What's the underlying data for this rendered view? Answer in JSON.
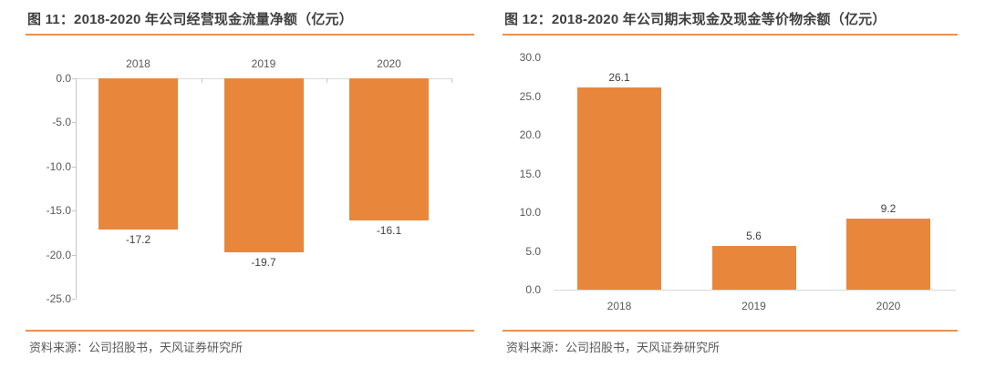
{
  "colors": {
    "bar": "#e8873c",
    "rule": "#e9914e",
    "axis_line": "#c6c6c6",
    "base_line": "#d9d9d9",
    "title_text": "#3f3f3f",
    "tick_text": "#595959",
    "data_label_text": "#3f3f3f",
    "source_text": "#595959"
  },
  "figures": [
    {
      "source": "资料来源：公司招股书，天风证券研究所"
    },
    {
      "source": "资料来源：公司招股书，天风证券研究所"
    }
  ],
  "chart_data": [
    {
      "type": "bar",
      "title": "图 11：2018-2020 年公司经营现金流量净额（亿元）",
      "categories": [
        "2018",
        "2019",
        "2020"
      ],
      "values": [
        -17.2,
        -19.7,
        -16.1
      ],
      "data_labels": [
        "-17.2",
        "-19.7",
        "-16.1"
      ],
      "xlabel": "",
      "ylabel": "",
      "ylim": [
        -25,
        0
      ],
      "yticks": [
        0,
        -5,
        -10,
        -15,
        -20,
        -25
      ],
      "ytick_labels": [
        "0.0",
        "-5.0",
        "-10.0",
        "-15.0",
        "-20.0",
        "-25.0"
      ],
      "grid": false,
      "legend": false,
      "bar_color": "#e8873c",
      "category_label_position": "above-zero-line",
      "data_label_position": "below-bar-end"
    },
    {
      "type": "bar",
      "title": "图 12：2018-2020 年公司期末现金及现金等价物余额（亿元）",
      "categories": [
        "2018",
        "2019",
        "2020"
      ],
      "values": [
        26.1,
        5.6,
        9.2
      ],
      "data_labels": [
        "26.1",
        "5.6",
        "9.2"
      ],
      "xlabel": "",
      "ylabel": "",
      "ylim": [
        0,
        30
      ],
      "yticks": [
        30,
        25,
        20,
        15,
        10,
        5,
        0
      ],
      "ytick_labels": [
        "30.0",
        "25.0",
        "20.0",
        "15.0",
        "10.0",
        "5.0",
        "0.0"
      ],
      "grid": false,
      "legend": false,
      "bar_color": "#e8873c",
      "category_label_position": "below-baseline",
      "data_label_position": "above-bar-end"
    }
  ]
}
